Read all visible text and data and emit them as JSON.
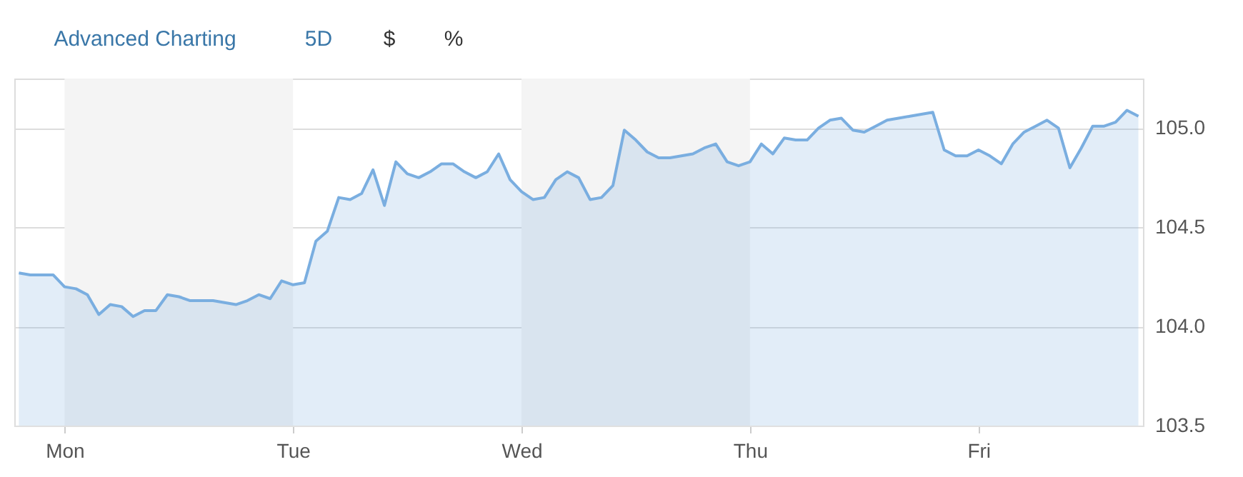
{
  "chart_data": {
    "type": "area",
    "annotations": [
      "Advanced Charting",
      "5D",
      "$",
      "%"
    ],
    "categories": [
      null,
      null,
      null,
      null,
      "Mon",
      null,
      null,
      null,
      null,
      null,
      null,
      null,
      null,
      null,
      null,
      null,
      null,
      null,
      null,
      null,
      null,
      null,
      null,
      null,
      "Tue",
      null,
      null,
      null,
      null,
      null,
      null,
      null,
      null,
      null,
      null,
      null,
      null,
      null,
      null,
      null,
      null,
      null,
      null,
      null,
      "Wed",
      null,
      null,
      null,
      null,
      null,
      null,
      null,
      null,
      null,
      null,
      null,
      null,
      null,
      null,
      null,
      null,
      null,
      null,
      null,
      "Thu",
      null,
      null,
      null,
      null,
      null,
      null,
      null,
      null,
      null,
      null,
      null,
      null,
      null,
      null,
      null,
      null,
      null,
      null,
      null,
      "Fri",
      null,
      null,
      null,
      null,
      null,
      null,
      null,
      null,
      null,
      null,
      null,
      null,
      null,
      null
    ],
    "series": [
      {
        "color": "#7aaee0",
        "values": [
          104.27,
          104.26,
          104.26,
          104.26,
          104.2,
          104.19,
          104.16,
          104.06,
          104.11,
          104.1,
          104.05,
          104.08,
          104.08,
          104.16,
          104.15,
          104.13,
          104.13,
          104.13,
          104.12,
          104.11,
          104.13,
          104.16,
          104.14,
          104.23,
          104.21,
          104.22,
          104.43,
          104.48,
          104.65,
          104.64,
          104.67,
          104.79,
          104.61,
          104.83,
          104.77,
          104.75,
          104.78,
          104.82,
          104.82,
          104.78,
          104.75,
          104.78,
          104.87,
          104.74,
          104.68,
          104.64,
          104.65,
          104.74,
          104.78,
          104.75,
          104.64,
          104.65,
          104.71,
          104.99,
          104.94,
          104.88,
          104.85,
          104.85,
          104.86,
          104.87,
          104.9,
          104.92,
          104.83,
          104.81,
          104.83,
          104.92,
          104.87,
          104.95,
          104.94,
          104.94,
          105.0,
          105.04,
          105.05,
          104.99,
          104.98,
          105.01,
          105.04,
          105.05,
          105.06,
          105.07,
          105.08,
          104.89,
          104.86,
          104.86,
          104.89,
          104.86,
          104.82,
          104.92,
          104.98,
          105.01,
          105.04,
          105.0,
          104.8,
          104.9,
          105.01,
          105.01,
          105.03,
          105.09,
          105.06
        ]
      }
    ],
    "ylim": [
      103.5,
      105.25
    ],
    "yticks": [
      {
        "value": 103.5,
        "label": "103.5"
      },
      {
        "value": 104.0,
        "label": "104.0"
      },
      {
        "value": 104.5,
        "label": "104.5"
      },
      {
        "value": 105.0,
        "label": "105.0"
      }
    ],
    "bands": [
      {
        "axis": "x",
        "from": "Mon",
        "to": "Tue",
        "color": "#f4f4f4"
      },
      {
        "axis": "x",
        "from": "Wed",
        "to": "Thu",
        "color": "#f4f4f4"
      }
    ],
    "grid": "y"
  }
}
